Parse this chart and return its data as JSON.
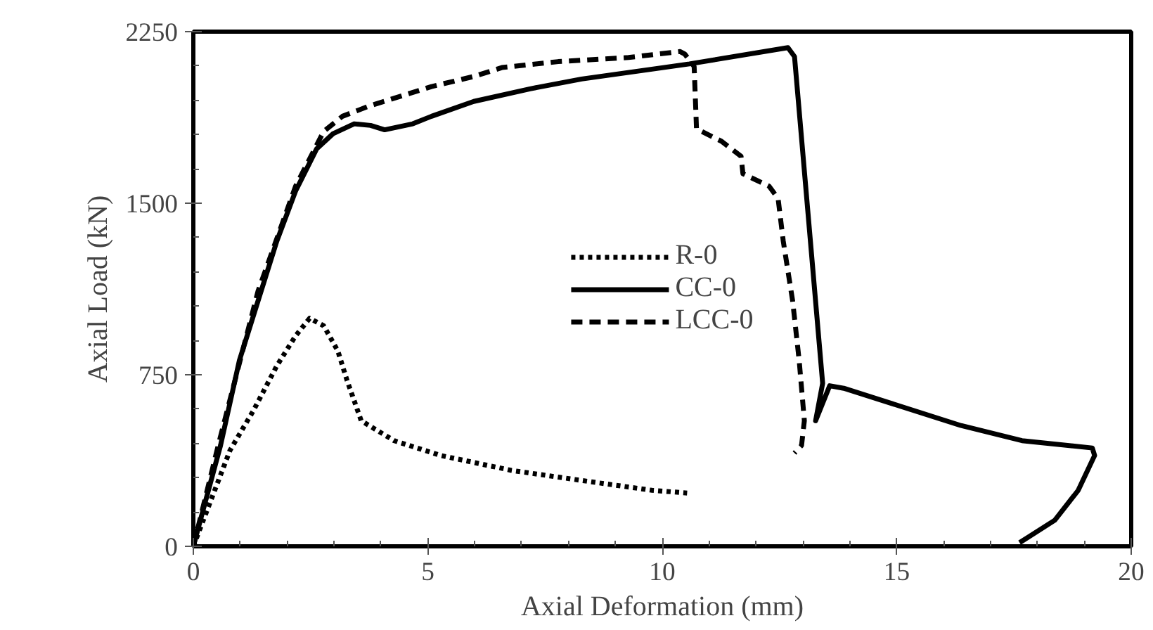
{
  "chart_data": {
    "type": "line",
    "xlabel": "Axial Deformation (mm)",
    "ylabel": "Axial Load (kN)",
    "xlim": [
      0,
      20
    ],
    "ylim": [
      0,
      2250
    ],
    "xticks": [
      0,
      {
        "value": 1,
        "label": null
      },
      {
        "value": 2,
        "label": null
      },
      {
        "value": 3,
        "label": null
      },
      {
        "value": 4,
        "label": null
      },
      5,
      {
        "value": 6,
        "label": null
      },
      {
        "value": 7,
        "label": null
      },
      {
        "value": 8,
        "label": null
      },
      {
        "value": 9,
        "label": null
      },
      10,
      {
        "value": 11,
        "label": null
      },
      {
        "value": 12,
        "label": null
      },
      {
        "value": 13,
        "label": null
      },
      {
        "value": 14,
        "label": null
      },
      15,
      {
        "value": 16,
        "label": null
      },
      {
        "value": 17,
        "label": null
      },
      {
        "value": 18,
        "label": null
      },
      {
        "value": 19,
        "label": null
      },
      20
    ],
    "yticks": [
      0,
      {
        "value": 150,
        "label": null
      },
      {
        "value": 300,
        "label": null
      },
      {
        "value": 450,
        "label": null
      },
      {
        "value": 600,
        "label": null
      },
      750,
      {
        "value": 900,
        "label": null
      },
      {
        "value": 1050,
        "label": null
      },
      {
        "value": 1200,
        "label": null
      },
      {
        "value": 1350,
        "label": null
      },
      1500,
      {
        "value": 1650,
        "label": null
      },
      {
        "value": 1800,
        "label": null
      },
      {
        "value": 1950,
        "label": null
      },
      {
        "value": 2100,
        "label": null
      },
      2250
    ],
    "grid": false,
    "legend": "center",
    "marker": "none",
    "series": [
      {
        "name": "R-0",
        "color": "#000000",
        "line_style": "dotted",
        "x": [
          0,
          0.78,
          1.28,
          1.78,
          2.18,
          2.48,
          2.78,
          3.08,
          3.28,
          3.58,
          4.28,
          5.28,
          6.78,
          8.28,
          9.78,
          10.53
        ],
        "values": [
          0,
          419,
          593,
          789,
          920,
          997,
          964,
          855,
          724,
          549,
          462,
          397,
          332,
          288,
          245,
          233
        ]
      },
      {
        "name": "CC-0",
        "color": "#000000",
        "line_style": "solid",
        "x": [
          0,
          0.58,
          0.98,
          1.38,
          1.78,
          2.18,
          2.63,
          2.98,
          3.43,
          3.78,
          4.08,
          4.68,
          5.08,
          5.98,
          7.18,
          8.28,
          9.78,
          10.58,
          12.68,
          12.82,
          13.42,
          13.27,
          13.57,
          13.87,
          14.87,
          16.37,
          17.67,
          19.17,
          19.22,
          18.87,
          18.37,
          17.62
        ],
        "values": [
          0,
          441,
          811,
          1073,
          1334,
          1553,
          1738,
          1804,
          1847,
          1840,
          1821,
          1847,
          1880,
          1945,
          2000,
          2043,
          2086,
          2109,
          2180,
          2141,
          713,
          549,
          702,
          691,
          626,
          528,
          462,
          430,
          397,
          245,
          114,
          16
        ]
      },
      {
        "name": "LCC-0",
        "color": "#000000",
        "line_style": "dashed",
        "x": [
          0,
          0.53,
          1.38,
          2.18,
          2.78,
          3.18,
          3.78,
          5.08,
          5.98,
          6.58,
          7.78,
          9.28,
          10.38,
          10.48,
          10.68,
          10.73,
          11.27,
          11.68,
          11.72,
          12.28,
          12.47,
          12.58,
          12.78,
          12.92,
          13.03,
          12.97,
          12.82
        ],
        "values": [
          0,
          441,
          1116,
          1574,
          1814,
          1880,
          1927,
          2010,
          2054,
          2093,
          2119,
          2137,
          2163,
          2152,
          2097,
          1825,
          1770,
          1705,
          1629,
          1574,
          1520,
          1334,
          1073,
          811,
          549,
          441,
          408
        ]
      }
    ]
  }
}
